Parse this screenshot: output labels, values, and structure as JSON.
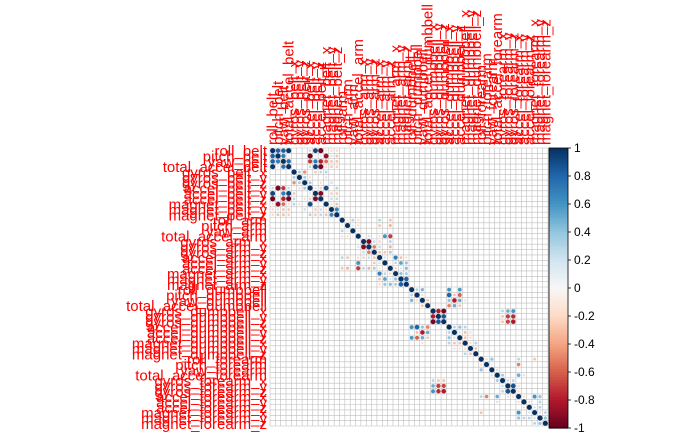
{
  "chart_data": {
    "type": "heatmap",
    "subtype": "correlation-circles",
    "title": "",
    "variables": [
      "roll_belt",
      "pitch_belt",
      "yaw_belt",
      "total_accel_belt",
      "gyros_belt_x",
      "gyros_belt_y",
      "gyros_belt_z",
      "accel_belt_x",
      "accel_belt_y",
      "accel_belt_z",
      "magnet_belt_x",
      "magnet_belt_y",
      "magnet_belt_z",
      "roll_arm",
      "pitch_arm",
      "yaw_arm",
      "total_accel_arm",
      "gyros_arm_x",
      "gyros_arm_y",
      "gyros_arm_z",
      "accel_arm_x",
      "accel_arm_y",
      "accel_arm_z",
      "magnet_arm_x",
      "magnet_arm_y",
      "magnet_arm_z",
      "roll_dumbbell",
      "pitch_dumbbell",
      "yaw_dumbbell",
      "total_accel_dumbbell",
      "gyros_dumbbell_x",
      "gyros_dumbbell_y",
      "gyros_dumbbell_z",
      "accel_dumbbell_x",
      "accel_dumbbell_y",
      "accel_dumbbell_z",
      "magnet_dumbbell_x",
      "magnet_dumbbell_y",
      "magnet_dumbbell_z",
      "roll_forearm",
      "pitch_forearm",
      "yaw_forearm",
      "total_accel_forearm",
      "gyros_forearm_x",
      "gyros_forearm_y",
      "gyros_forearm_z",
      "accel_forearm_x",
      "accel_forearm_y",
      "accel_forearm_z",
      "magnet_forearm_x",
      "magnet_forearm_y",
      "magnet_forearm_z"
    ],
    "correlations": [
      [
        0,
        1,
        0.82
      ],
      [
        0,
        2,
        0.82
      ],
      [
        0,
        3,
        0.98
      ],
      [
        0,
        7,
        0.25
      ],
      [
        0,
        8,
        0.92
      ],
      [
        0,
        9,
        -0.99
      ],
      [
        0,
        11,
        -0.22
      ],
      [
        0,
        12,
        -0.22
      ],
      [
        0,
        10,
        -0.2
      ],
      [
        1,
        2,
        0.7
      ],
      [
        1,
        3,
        -0.14
      ],
      [
        1,
        7,
        -0.97
      ],
      [
        1,
        8,
        -0.12
      ],
      [
        1,
        9,
        0.16
      ],
      [
        1,
        10,
        -0.88
      ],
      [
        1,
        12,
        -0.3
      ],
      [
        1,
        11,
        0.2
      ],
      [
        2,
        3,
        0.76
      ],
      [
        2,
        7,
        -0.71
      ],
      [
        2,
        8,
        0.71
      ],
      [
        2,
        9,
        -0.78
      ],
      [
        2,
        10,
        -0.56
      ],
      [
        2,
        11,
        -0.3
      ],
      [
        2,
        12,
        -0.3
      ],
      [
        3,
        8,
        0.93
      ],
      [
        3,
        9,
        -0.97
      ],
      [
        3,
        7,
        0.26
      ],
      [
        3,
        11,
        -0.28
      ],
      [
        3,
        12,
        -0.25
      ],
      [
        3,
        10,
        -0.2
      ],
      [
        4,
        5,
        0.34
      ],
      [
        4,
        6,
        -0.46
      ],
      [
        4,
        8,
        -0.28
      ],
      [
        4,
        9,
        0.28
      ],
      [
        4,
        10,
        0.3
      ],
      [
        5,
        6,
        0.34
      ],
      [
        5,
        7,
        -0.2
      ],
      [
        5,
        10,
        0.2
      ],
      [
        6,
        7,
        0.35
      ],
      [
        6,
        9,
        -0.2
      ],
      [
        6,
        11,
        0.24
      ],
      [
        7,
        8,
        0.19
      ],
      [
        7,
        9,
        -0.25
      ],
      [
        7,
        10,
        0.89
      ],
      [
        7,
        12,
        0.3
      ],
      [
        8,
        9,
        -0.93
      ],
      [
        8,
        11,
        -0.26
      ],
      [
        8,
        12,
        -0.27
      ],
      [
        9,
        11,
        0.25
      ],
      [
        9,
        12,
        0.27
      ],
      [
        10,
        11,
        -0.2
      ],
      [
        10,
        12,
        -0.3
      ],
      [
        11,
        12,
        0.66
      ],
      [
        13,
        14,
        -0.15
      ],
      [
        13,
        15,
        0.3
      ],
      [
        13,
        16,
        -0.2
      ],
      [
        13,
        20,
        0.3
      ],
      [
        13,
        22,
        -0.3
      ],
      [
        14,
        15,
        0.15
      ],
      [
        14,
        16,
        -0.19
      ],
      [
        14,
        20,
        -0.29
      ],
      [
        14,
        22,
        -0.35
      ],
      [
        15,
        16,
        -0.14
      ],
      [
        15,
        20,
        -0.1
      ],
      [
        16,
        18,
        0.2
      ],
      [
        16,
        20,
        -0.2
      ],
      [
        16,
        21,
        0.6
      ],
      [
        16,
        22,
        -0.7
      ],
      [
        17,
        18,
        -0.92
      ],
      [
        17,
        19,
        0.25
      ],
      [
        17,
        20,
        -0.25
      ],
      [
        17,
        22,
        0.3
      ],
      [
        18,
        19,
        -0.52
      ],
      [
        18,
        20,
        0.25
      ],
      [
        18,
        22,
        -0.35
      ],
      [
        19,
        20,
        -0.3
      ],
      [
        19,
        21,
        -0.29
      ],
      [
        19,
        22,
        0.34
      ],
      [
        20,
        21,
        0.21
      ],
      [
        20,
        22,
        -0.13
      ],
      [
        20,
        23,
        0.69
      ],
      [
        20,
        24,
        -0.3
      ],
      [
        20,
        25,
        -0.2
      ],
      [
        21,
        22,
        -0.13
      ],
      [
        21,
        23,
        0.28
      ],
      [
        21,
        24,
        0.54
      ],
      [
        21,
        25,
        0.38
      ],
      [
        22,
        23,
        -0.24
      ],
      [
        22,
        24,
        0.17
      ],
      [
        22,
        25,
        0.42
      ],
      [
        23,
        24,
        0.4
      ],
      [
        23,
        25,
        0.35
      ],
      [
        24,
        25,
        0.81
      ],
      [
        26,
        27,
        0.3
      ],
      [
        26,
        28,
        0.45
      ],
      [
        26,
        33,
        0.6
      ],
      [
        26,
        35,
        0.58
      ],
      [
        27,
        28,
        -0.2
      ],
      [
        27,
        33,
        0.81
      ],
      [
        27,
        34,
        -0.3
      ],
      [
        27,
        35,
        -0.6
      ],
      [
        28,
        29,
        -0.3
      ],
      [
        28,
        33,
        0.4
      ],
      [
        28,
        34,
        -0.8
      ],
      [
        28,
        35,
        0.5
      ],
      [
        28,
        36,
        -0.2
      ],
      [
        29,
        33,
        -0.5
      ],
      [
        29,
        34,
        0.5
      ],
      [
        29,
        35,
        -0.3
      ],
      [
        30,
        31,
        -0.8
      ],
      [
        30,
        32,
        -0.95
      ],
      [
        30,
        43,
        0.3
      ],
      [
        30,
        44,
        0.5
      ],
      [
        30,
        45,
        0.6
      ],
      [
        31,
        32,
        0.85
      ],
      [
        31,
        43,
        -0.3
      ],
      [
        31,
        44,
        -0.7
      ],
      [
        31,
        45,
        -0.75
      ],
      [
        32,
        43,
        -0.3
      ],
      [
        32,
        44,
        -0.68
      ],
      [
        32,
        45,
        -0.8
      ],
      [
        33,
        34,
        0.3
      ],
      [
        33,
        35,
        0.4
      ],
      [
        33,
        36,
        0.3
      ],
      [
        34,
        35,
        0.2
      ],
      [
        34,
        36,
        -0.3
      ],
      [
        34,
        37,
        0.2
      ],
      [
        35,
        36,
        -0.3
      ],
      [
        35,
        37,
        -0.2
      ],
      [
        36,
        37,
        -0.2
      ],
      [
        36,
        38,
        0.3
      ],
      [
        37,
        38,
        -0.3
      ],
      [
        39,
        40,
        -0.2
      ],
      [
        39,
        41,
        0.4
      ],
      [
        39,
        46,
        0.3
      ],
      [
        39,
        49,
        -0.3
      ],
      [
        40,
        41,
        -0.1
      ],
      [
        40,
        46,
        -0.5
      ],
      [
        41,
        42,
        0.2
      ],
      [
        42,
        43,
        0.35
      ],
      [
        42,
        46,
        0.5
      ],
      [
        42,
        47,
        0.2
      ],
      [
        43,
        44,
        0.25
      ],
      [
        43,
        45,
        0.3
      ],
      [
        44,
        45,
        0.87
      ],
      [
        44,
        46,
        -0.2
      ],
      [
        45,
        46,
        -0.2
      ],
      [
        46,
        47,
        -0.2
      ],
      [
        46,
        49,
        0.6
      ],
      [
        46,
        50,
        0.4
      ],
      [
        47,
        48,
        -0.2
      ],
      [
        47,
        50,
        0.3
      ],
      [
        48,
        49,
        0.2
      ],
      [
        48,
        50,
        0.3
      ],
      [
        49,
        50,
        0.2
      ],
      [
        49,
        51,
        0.3
      ],
      [
        50,
        51,
        0.4
      ]
    ],
    "colorbar": {
      "range": [
        -1,
        1
      ],
      "tick_labels": [
        "1",
        "0.8",
        "0.6",
        "0.4",
        "0.2",
        "0",
        "-0.2",
        "-0.4",
        "-0.6",
        "-0.8",
        "-1"
      ],
      "tick_values": [
        1,
        0.8,
        0.6,
        0.4,
        0.2,
        0,
        -0.2,
        -0.4,
        -0.6,
        -0.8,
        -1
      ],
      "colors": {
        "negative_strong": "#67001f",
        "negative_mid": "#d6604d",
        "neutral": "#f7f7f7",
        "positive_mid": "#4393c3",
        "positive_strong": "#053061"
      }
    },
    "label_color": "#ff0000",
    "grid": true,
    "diagonal": 1
  }
}
